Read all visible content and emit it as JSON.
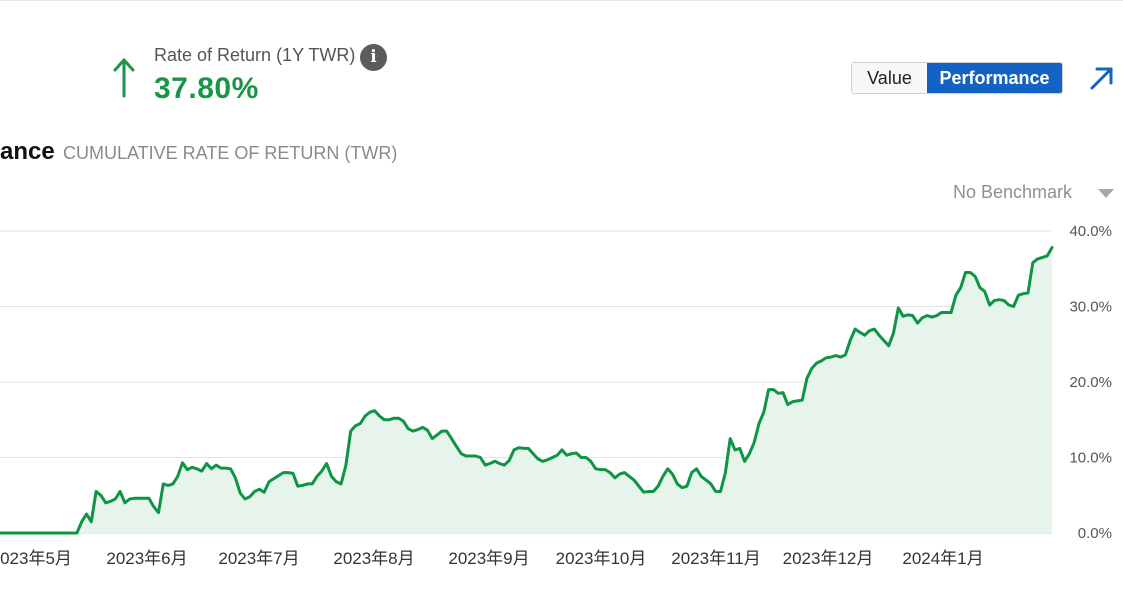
{
  "header": {
    "metric_label": "Rate of Return (1Y TWR)",
    "metric_value": "37.80%",
    "trend_icon": "arrow-up-icon",
    "info_icon": "info-icon",
    "info_glyph": "i",
    "value_color": "#1a9446"
  },
  "toggle": {
    "value_label": "Value",
    "performance_label": "Performance",
    "active": "Performance",
    "active_color": "#1463c4"
  },
  "expand_icon": "expand-arrow-icon",
  "section": {
    "title": "ance",
    "subtitle": "CUMULATIVE RATE OF RETURN (TWR)"
  },
  "benchmark": {
    "selected": "No Benchmark",
    "icon": "caret-down-icon"
  },
  "chart_data": {
    "type": "area",
    "ylim": [
      0,
      40
    ],
    "y_ticks": [
      "40.0%",
      "30.0%",
      "20.0%",
      "10.0%",
      "0.0%"
    ],
    "x_tick_labels": [
      "023年5月",
      "2023年6月",
      "2023年7月",
      "2023年8月",
      "2023年9月",
      "2023年10月",
      "2023年11月",
      "2023年12月",
      "2024年1月"
    ],
    "grid": true,
    "line_color": "#0e9444",
    "fill_color": "#e6f4ec",
    "series": [
      {
        "values": [
          0,
          0,
          0,
          0,
          0,
          0,
          0,
          0,
          0,
          0,
          0,
          0,
          0,
          0,
          0,
          0,
          0,
          1.5,
          2.5,
          1.5,
          5.5,
          5,
          4,
          4.2,
          4.5,
          5.5,
          4,
          4.5,
          4.6,
          4.6,
          4.6,
          4.6,
          3.5,
          2.7,
          6.5,
          6.3,
          6.5,
          7.5,
          9.3,
          8.4,
          8.7,
          8.5,
          8.2,
          9.2,
          8.5,
          9,
          8.6,
          8.6,
          8.5,
          7.3,
          5.3,
          4.5,
          4.8,
          5.5,
          5.8,
          5.4,
          6.8,
          7.2,
          7.6,
          8,
          8,
          7.9,
          6.2,
          6.3,
          6.5,
          6.5,
          7.5,
          8.2,
          9.2,
          7.5,
          6.8,
          6.5,
          9,
          13.5,
          14.2,
          14.5,
          15.5,
          16,
          16.2,
          15.5,
          15,
          15,
          15.2,
          15.2,
          14.8,
          13.8,
          13.5,
          13.7,
          14,
          13.6,
          12.5,
          13,
          13.5,
          13.5,
          12.5,
          11.5,
          10.5,
          10.2,
          10.2,
          10.2,
          10,
          9,
          9.2,
          9.5,
          9.2,
          9,
          9.6,
          11,
          11.3,
          11.2,
          11.2,
          10.5,
          9.8,
          9.5,
          9.7,
          10,
          10.3,
          11,
          10.3,
          10.5,
          10.6,
          10,
          10,
          9.5,
          8.5,
          8.4,
          8.4,
          8,
          7.3,
          7.8,
          8,
          7.5,
          7,
          6.2,
          5.4,
          5.5,
          5.5,
          6.2,
          7.5,
          8.5,
          7.8,
          6.5,
          6,
          6.2,
          8,
          8.5,
          7.5,
          7,
          6.5,
          5.5,
          5.5,
          8,
          12.5,
          11,
          11.2,
          9.5,
          10.5,
          12,
          14.5,
          16,
          19,
          19,
          18.5,
          18.6,
          17,
          17.4,
          17.5,
          17.6,
          20.5,
          21.8,
          22.5,
          22.8,
          23.2,
          23.3,
          23.5,
          23.3,
          23.6,
          25.5,
          27,
          26.6,
          26.2,
          26.8,
          27,
          26.2,
          25.5,
          24.8,
          26.5,
          29.8,
          28.7,
          28.9,
          28.8,
          27.8,
          28.5,
          28.8,
          28.6,
          28.8,
          29.2,
          29.2,
          29.2,
          31.5,
          32.5,
          34.5,
          34.5,
          34,
          32.5,
          32,
          30.2,
          30.8,
          30.9,
          30.8,
          30.2,
          30,
          31.5,
          31.7,
          31.8,
          35.8,
          36.3,
          36.5,
          36.7,
          37.8
        ]
      }
    ]
  }
}
